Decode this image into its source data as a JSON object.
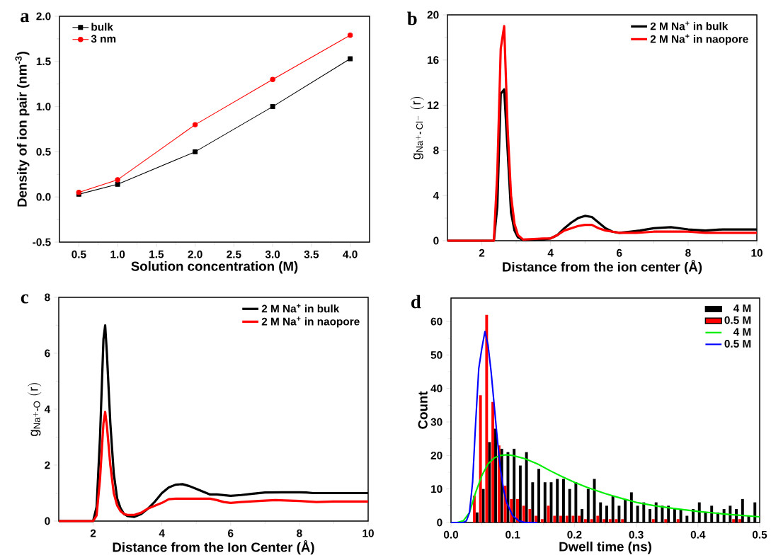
{
  "chart_data": [
    {
      "type": "line",
      "xlabel": "Solution concentration (M)",
      "ylabel": "Density of ion pair (nm$^{-3}$)",
      "annotations": [
        "a"
      ],
      "legend": "top left",
      "xlim": [
        0.25,
        4.25
      ],
      "ylim": [
        -0.5,
        2.0
      ],
      "xticks": [
        0.5,
        {
          "value": 1,
          "label": "1.0"
        },
        1.5,
        {
          "value": 2,
          "label": "2.0"
        },
        2.5,
        {
          "value": 3,
          "label": "3.0"
        },
        3.5,
        {
          "value": 4,
          "label": "4.0"
        }
      ],
      "yticks": [
        -0.5,
        {
          "value": 0,
          "label": "0.0"
        },
        0.5,
        {
          "value": 1,
          "label": "1.0"
        },
        1.5,
        {
          "value": 2,
          "label": "2.0"
        }
      ],
      "x": [
        0.5,
        1,
        2,
        3,
        4
      ],
      "series": [
        {
          "name": "bulk",
          "color": "#000000",
          "marker": "square",
          "values": [
            0.03,
            0.14,
            0.5,
            1.0,
            1.53
          ]
        },
        {
          "name": "3 nm",
          "color": "#ff0000",
          "marker": "circle",
          "values": [
            0.05,
            0.19,
            0.8,
            1.3,
            1.79
          ]
        }
      ]
    },
    {
      "type": "line",
      "xlabel": "Distance from the ion center (Å)",
      "ylabel": "\\mathrm{g_{Na^{+}\\text{-}\\,Cl^{-}}\\;(r)}",
      "annotations": [
        "b"
      ],
      "legend": "top right",
      "xlim": [
        1,
        10
      ],
      "ylim": [
        0,
        20
      ],
      "xticks": [
        2,
        4,
        6,
        8,
        10
      ],
      "yticks": [
        0,
        4,
        8,
        12,
        16,
        20
      ],
      "series": [
        {
          "name": "2 M Na$^{+}$ in bulk",
          "color": "#000000",
          "x": [
            1,
            2.35,
            2.45,
            2.55,
            2.65,
            2.75,
            2.85,
            2.95,
            3.05,
            3.2,
            3.8,
            4.0,
            4.2,
            4.4,
            4.6,
            4.8,
            5.0,
            5.2,
            5.4,
            5.6,
            5.8,
            6.0,
            6.3,
            6.6,
            7.0,
            7.5,
            8.0,
            8.5,
            9.0,
            10
          ],
          "values": [
            0,
            0,
            3,
            13,
            13.4,
            8,
            2.5,
            0.9,
            0.3,
            0.05,
            0.1,
            0.2,
            0.5,
            1.1,
            1.6,
            2.0,
            2.2,
            2.1,
            1.6,
            1.1,
            0.8,
            0.7,
            0.8,
            0.9,
            1.1,
            1.2,
            1.0,
            0.9,
            1.0,
            1.0
          ]
        },
        {
          "name": "2 M Na$^{+}$ in naopore",
          "color": "#ff0000",
          "x": [
            1,
            2.35,
            2.45,
            2.55,
            2.65,
            2.75,
            2.85,
            2.95,
            3.05,
            3.2,
            3.8,
            4.0,
            4.2,
            4.4,
            4.6,
            4.8,
            5.0,
            5.2,
            5.4,
            5.6,
            5.8,
            6.0,
            6.2,
            6.5,
            7.0,
            7.5,
            8.0,
            8.5,
            9.0,
            10
          ],
          "values": [
            0,
            0,
            6,
            17,
            19,
            10,
            4,
            1.5,
            0.5,
            0.1,
            0.2,
            0.2,
            0.5,
            0.9,
            1.1,
            1.3,
            1.4,
            1.4,
            1.1,
            0.9,
            0.8,
            0.7,
            0.7,
            0.7,
            0.8,
            0.8,
            0.8,
            0.7,
            0.7,
            0.7
          ]
        }
      ]
    },
    {
      "type": "line",
      "xlabel": "Distance from the Ion Center (Å)",
      "ylabel": "\\mathrm{g_{Na^{+}\\text{-}O}\\;(r)}",
      "annotations": [
        "c"
      ],
      "legend": "top right",
      "xlim": [
        1,
        10
      ],
      "ylim": [
        0,
        8
      ],
      "xticks": [
        2,
        4,
        6,
        8,
        10
      ],
      "yticks": [
        0,
        2,
        4,
        6,
        8
      ],
      "series": [
        {
          "name": "2 M Na$^{+}$ in bulk",
          "color": "#000000",
          "x": [
            1,
            2.0,
            2.1,
            2.2,
            2.3,
            2.35,
            2.4,
            2.5,
            2.6,
            2.7,
            2.8,
            2.9,
            3.0,
            3.2,
            3.4,
            3.6,
            3.8,
            4.0,
            4.2,
            4.4,
            4.6,
            4.8,
            5.0,
            5.2,
            5.4,
            5.6,
            6.0,
            6.3,
            6.6,
            7.0,
            7.5,
            8.0,
            8.2,
            8.4,
            9.0,
            10
          ],
          "values": [
            0,
            0,
            0.5,
            3,
            6.5,
            7.0,
            6,
            3.5,
            1.7,
            0.8,
            0.45,
            0.25,
            0.18,
            0.15,
            0.25,
            0.45,
            0.7,
            1.0,
            1.2,
            1.3,
            1.32,
            1.25,
            1.15,
            1.05,
            0.95,
            0.95,
            0.9,
            0.93,
            0.97,
            1.02,
            1.03,
            1.03,
            1.02,
            1.0,
            1.0,
            1.0
          ]
        },
        {
          "name": "2 M Na$^{+}$ in naopore",
          "color": "#ff0000",
          "x": [
            1,
            2.0,
            2.1,
            2.2,
            2.3,
            2.35,
            2.4,
            2.5,
            2.6,
            2.7,
            2.8,
            2.9,
            3.0,
            3.2,
            3.4,
            3.6,
            3.8,
            4.0,
            4.2,
            4.4,
            4.6,
            5.0,
            5.4,
            5.6,
            5.8,
            6.0,
            6.3,
            7.0,
            7.3,
            8.0,
            8.5,
            9.0,
            10
          ],
          "values": [
            0,
            0,
            0.2,
            1.5,
            3.5,
            3.9,
            3.4,
            2.0,
            1.0,
            0.55,
            0.35,
            0.25,
            0.22,
            0.22,
            0.3,
            0.45,
            0.55,
            0.65,
            0.78,
            0.8,
            0.8,
            0.8,
            0.8,
            0.75,
            0.68,
            0.65,
            0.68,
            0.73,
            0.75,
            0.72,
            0.68,
            0.7,
            0.7
          ]
        }
      ]
    },
    {
      "type": "bar",
      "xlabel": "Dwell time (ns)",
      "ylabel": "Count",
      "annotations": [
        "d"
      ],
      "legend": "top right",
      "xlim": [
        0,
        0.5
      ],
      "ylim": [
        0,
        67
      ],
      "xticks": [
        {
          "value": 0,
          "label": "0.0"
        },
        0.1,
        0.2,
        0.3,
        0.4,
        0.5
      ],
      "yticks": [
        0,
        10,
        20,
        30,
        40,
        50,
        60
      ],
      "x": [
        0.04,
        0.05,
        0.06,
        0.07,
        0.08,
        0.09,
        0.1,
        0.11,
        0.12,
        0.13,
        0.14,
        0.15,
        0.16,
        0.17,
        0.18,
        0.19,
        0.2,
        0.21,
        0.22,
        0.23,
        0.24,
        0.25,
        0.26,
        0.27,
        0.28,
        0.29,
        0.3,
        0.31,
        0.32,
        0.33,
        0.34,
        0.35,
        0.36,
        0.37,
        0.38,
        0.39,
        0.4,
        0.41,
        0.42,
        0.43,
        0.44,
        0.45,
        0.46,
        0.47,
        0.48,
        0.49
      ],
      "series": [
        {
          "name": "4 M",
          "color": "#000000",
          "values": [
            3,
            10,
            24,
            28,
            22,
            21,
            22,
            17,
            21,
            12,
            16,
            12,
            12,
            13,
            13,
            10,
            12,
            4,
            10,
            13,
            6,
            5,
            8,
            5,
            7,
            9,
            5,
            6,
            4,
            6,
            5,
            5,
            4,
            4,
            2,
            4,
            6,
            3,
            5,
            3,
            4,
            5,
            4,
            7,
            2,
            6
          ]
        },
        {
          "name": "0.5 M",
          "color": "#ff0000",
          "values": [
            8,
            38,
            62,
            36,
            23,
            11,
            7,
            7,
            5,
            4,
            2,
            1,
            5,
            2,
            2,
            2,
            2,
            2,
            1,
            1,
            2,
            1,
            1,
            1,
            1,
            0,
            0,
            0,
            0,
            1,
            0,
            1,
            0,
            1,
            0,
            0,
            0,
            0,
            0,
            0,
            0,
            0,
            1,
            1,
            0,
            0
          ]
        },
        {
          "name": "4 M",
          "color": "#00ee00",
          "type": "line",
          "x": [
            0,
            0.01,
            0.02,
            0.03,
            0.04,
            0.05,
            0.06,
            0.07,
            0.08,
            0.09,
            0.1,
            0.12,
            0.14,
            0.16,
            0.18,
            0.2,
            0.22,
            0.25,
            0.28,
            0.3,
            0.33,
            0.36,
            0.4,
            0.45,
            0.5
          ],
          "values": [
            0,
            0,
            0.5,
            3,
            9,
            14,
            17.5,
            19.3,
            20,
            20.2,
            20,
            19,
            17.5,
            15.5,
            13.7,
            12,
            10.5,
            8.6,
            7,
            6,
            5,
            4.2,
            3.3,
            2.4,
            1.7
          ]
        },
        {
          "name": "0.5 M",
          "color": "#0000ff",
          "type": "line",
          "x": [
            0,
            0.02,
            0.025,
            0.03,
            0.035,
            0.04,
            0.045,
            0.05,
            0.055,
            0.06,
            0.065,
            0.07,
            0.075,
            0.08,
            0.085,
            0.09,
            0.1,
            0.11,
            0.12,
            0.14
          ],
          "values": [
            0,
            0,
            0.5,
            3,
            12,
            30,
            46,
            52,
            57,
            53,
            45,
            35,
            25,
            16,
            10,
            6,
            2,
            0.5,
            0,
            0
          ]
        }
      ]
    }
  ]
}
